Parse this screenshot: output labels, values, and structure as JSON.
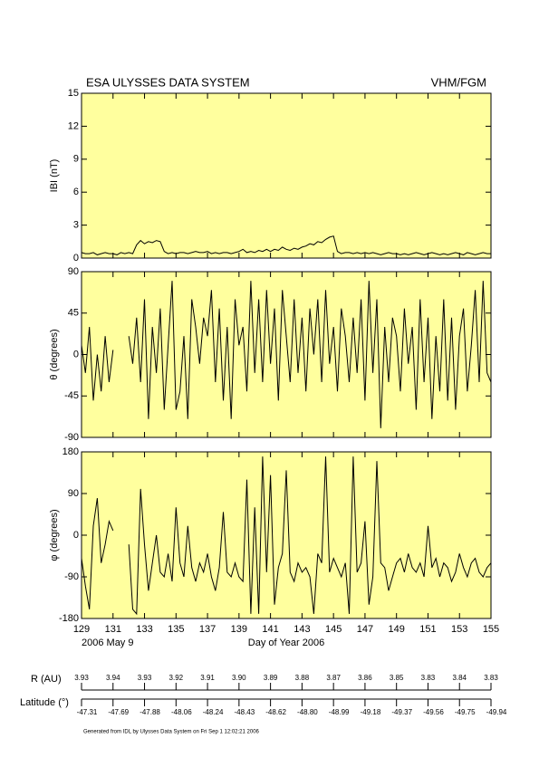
{
  "header": {
    "title": "ESA ULYSSES DATA SYSTEM",
    "instrument": "VHM/FGM"
  },
  "chart_data": [
    {
      "type": "line",
      "ylabel": "IBI (nT)",
      "color": "#000000",
      "x": [
        129,
        129.25,
        129.5,
        129.75,
        130,
        130.25,
        130.5,
        130.75,
        131,
        131.25,
        131.5,
        131.75,
        132,
        132.25,
        132.5,
        132.75,
        133,
        133.25,
        133.5,
        133.75,
        134,
        134.25,
        134.5,
        134.75,
        135,
        135.25,
        135.5,
        135.75,
        136,
        136.25,
        136.5,
        136.75,
        137,
        137.25,
        137.5,
        137.75,
        138,
        138.25,
        138.5,
        138.75,
        139,
        139.25,
        139.5,
        139.75,
        140,
        140.25,
        140.5,
        140.75,
        141,
        141.25,
        141.5,
        141.75,
        142,
        142.25,
        142.5,
        142.75,
        143,
        143.25,
        143.5,
        143.75,
        144,
        144.25,
        144.5,
        144.75,
        145,
        145.25,
        145.5,
        145.75,
        146,
        146.25,
        146.5,
        146.75,
        147,
        147.25,
        147.5,
        147.75,
        148,
        148.25,
        148.5,
        148.75,
        149,
        149.25,
        149.5,
        149.75,
        150,
        150.25,
        150.5,
        150.75,
        151,
        151.25,
        151.5,
        151.75,
        152,
        152.25,
        152.5,
        152.75,
        153,
        153.25,
        153.5,
        153.75,
        154,
        154.25,
        154.5,
        154.75,
        155
      ],
      "values": [
        0.5,
        0.4,
        0.4,
        0.5,
        0.3,
        0.4,
        0.5,
        0.4,
        0.4,
        0.3,
        0.5,
        0.4,
        0.5,
        0.4,
        1.2,
        1.6,
        1.3,
        1.5,
        1.4,
        1.6,
        1.5,
        0.6,
        0.4,
        0.5,
        0.4,
        0.5,
        0.5,
        0.4,
        0.5,
        0.6,
        0.5,
        0.5,
        0.6,
        0.4,
        0.5,
        0.4,
        0.5,
        0.5,
        0.4,
        0.5,
        0.6,
        0.8,
        0.5,
        0.6,
        0.5,
        0.7,
        0.6,
        0.8,
        0.6,
        0.8,
        0.7,
        1.0,
        0.8,
        0.7,
        0.9,
        0.8,
        1.0,
        1.1,
        1.3,
        1.2,
        1.5,
        1.4,
        1.7,
        1.9,
        2.0,
        0.6,
        0.4,
        0.5,
        0.5,
        0.4,
        0.5,
        0.4,
        0.5,
        0.4,
        0.5,
        0.4,
        0.3,
        0.4,
        0.5,
        0.4,
        0.4,
        0.3,
        0.4,
        0.3,
        0.4,
        0.5,
        0.4,
        0.3,
        0.4,
        0.5,
        0.4,
        0.3,
        0.4,
        0.3,
        0.4,
        0.5,
        0.4,
        0.3,
        0.5,
        0.4,
        0.3,
        0.4,
        0.5,
        0.4,
        0.4
      ],
      "xlim": [
        129,
        155
      ],
      "xticks": [
        129,
        131,
        133,
        135,
        137,
        139,
        141,
        143,
        145,
        147,
        149,
        151,
        153,
        155
      ],
      "ylim": [
        0,
        15
      ],
      "yticks": [
        0,
        3,
        6,
        9,
        12,
        15
      ]
    },
    {
      "type": "line",
      "ylabel": "θ (degrees)",
      "color": "#000000",
      "x": [
        129,
        129.25,
        129.5,
        129.75,
        130,
        130.25,
        130.5,
        130.75,
        131,
        131.25,
        131.5,
        131.75,
        132,
        132.25,
        132.5,
        132.75,
        133,
        133.25,
        133.5,
        133.75,
        134,
        134.25,
        134.5,
        134.75,
        135,
        135.25,
        135.5,
        135.75,
        136,
        136.25,
        136.5,
        136.75,
        137,
        137.25,
        137.5,
        137.75,
        138,
        138.25,
        138.5,
        138.75,
        139,
        139.25,
        139.5,
        139.75,
        140,
        140.25,
        140.5,
        140.75,
        141,
        141.25,
        141.5,
        141.75,
        142,
        142.25,
        142.5,
        142.75,
        143,
        143.25,
        143.5,
        143.75,
        144,
        144.25,
        144.5,
        144.75,
        145,
        145.25,
        145.5,
        145.75,
        146,
        146.25,
        146.5,
        146.75,
        147,
        147.25,
        147.5,
        147.75,
        148,
        148.25,
        148.5,
        148.75,
        149,
        149.25,
        149.5,
        149.75,
        150,
        150.25,
        150.5,
        150.75,
        151,
        151.25,
        151.5,
        151.75,
        152,
        152.25,
        152.5,
        152.75,
        153,
        153.25,
        153.5,
        153.75,
        154,
        154.25,
        154.5,
        154.75,
        155
      ],
      "values": [
        10,
        -20,
        30,
        -50,
        0,
        -40,
        20,
        -30,
        5,
        null,
        null,
        null,
        20,
        -10,
        40,
        -30,
        60,
        -70,
        30,
        -20,
        50,
        -60,
        10,
        80,
        -60,
        -40,
        20,
        -70,
        60,
        30,
        -10,
        40,
        20,
        70,
        -30,
        50,
        -50,
        30,
        -70,
        60,
        10,
        30,
        -40,
        80,
        -20,
        60,
        -30,
        70,
        -10,
        50,
        -50,
        70,
        20,
        -30,
        60,
        -20,
        40,
        -40,
        50,
        0,
        60,
        -30,
        70,
        -10,
        30,
        -40,
        50,
        20,
        -30,
        40,
        -20,
        60,
        -50,
        80,
        -20,
        60,
        -80,
        30,
        -30,
        40,
        20,
        -40,
        50,
        -10,
        30,
        -60,
        60,
        -30,
        40,
        -70,
        20,
        -40,
        60,
        -50,
        40,
        -60,
        20,
        50,
        -40,
        10,
        70,
        -30,
        80,
        -20,
        -30
      ],
      "xlim": [
        129,
        155
      ],
      "xticks": [
        129,
        131,
        133,
        135,
        137,
        139,
        141,
        143,
        145,
        147,
        149,
        151,
        153,
        155
      ],
      "ylim": [
        -90,
        90
      ],
      "yticks": [
        -90,
        -45,
        0,
        45,
        90
      ]
    },
    {
      "type": "line",
      "ylabel": "φ (degrees)",
      "xlabel": "Day of Year 2006",
      "date_label": "2006 May  9",
      "color": "#000000",
      "x": [
        129,
        129.25,
        129.5,
        129.75,
        130,
        130.25,
        130.5,
        130.75,
        131,
        131.25,
        131.5,
        131.75,
        132,
        132.25,
        132.5,
        132.75,
        133,
        133.25,
        133.5,
        133.75,
        134,
        134.25,
        134.5,
        134.75,
        135,
        135.25,
        135.5,
        135.75,
        136,
        136.25,
        136.5,
        136.75,
        137,
        137.25,
        137.5,
        137.75,
        138,
        138.25,
        138.5,
        138.75,
        139,
        139.25,
        139.5,
        139.75,
        140,
        140.25,
        140.5,
        140.75,
        141,
        141.25,
        141.5,
        141.75,
        142,
        142.25,
        142.5,
        142.75,
        143,
        143.25,
        143.5,
        143.75,
        144,
        144.25,
        144.5,
        144.75,
        145,
        145.25,
        145.5,
        145.75,
        146,
        146.25,
        146.5,
        146.75,
        147,
        147.25,
        147.5,
        147.75,
        148,
        148.25,
        148.5,
        148.75,
        149,
        149.25,
        149.5,
        149.75,
        150,
        150.25,
        150.5,
        150.75,
        151,
        151.25,
        151.5,
        151.75,
        152,
        152.25,
        152.5,
        152.75,
        153,
        153.25,
        153.5,
        153.75,
        154,
        154.25,
        154.5,
        154.75,
        155
      ],
      "values": [
        -50,
        -110,
        -160,
        20,
        80,
        -60,
        -20,
        30,
        10,
        null,
        null,
        null,
        -20,
        -160,
        -170,
        100,
        -20,
        -120,
        -60,
        0,
        -80,
        -90,
        -40,
        -100,
        60,
        -60,
        -90,
        20,
        -70,
        -100,
        -60,
        -80,
        -40,
        -90,
        -120,
        -70,
        50,
        -80,
        -90,
        -60,
        -90,
        -100,
        120,
        -170,
        60,
        -170,
        170,
        -80,
        130,
        -150,
        -70,
        -40,
        140,
        -80,
        -100,
        -60,
        -80,
        -70,
        -90,
        -170,
        -40,
        -60,
        170,
        -80,
        -50,
        -70,
        -90,
        -60,
        -170,
        170,
        -80,
        -60,
        30,
        -150,
        -90,
        160,
        -60,
        -70,
        -120,
        -90,
        -60,
        -50,
        -80,
        -40,
        -70,
        -80,
        -60,
        -90,
        20,
        -70,
        -50,
        -90,
        -60,
        -70,
        -100,
        -80,
        -40,
        -70,
        -90,
        -60,
        -50,
        -80,
        -90,
        -70,
        -60
      ],
      "xlim": [
        129,
        155
      ],
      "xticks": [
        129,
        131,
        133,
        135,
        137,
        139,
        141,
        143,
        145,
        147,
        149,
        151,
        153,
        155
      ],
      "ylim": [
        -180,
        180
      ],
      "yticks": [
        -180,
        -90,
        0,
        90,
        180
      ]
    }
  ],
  "ephemeris": {
    "r_label": "R (AU)",
    "r_values": [
      "3.93",
      "3.94",
      "3.93",
      "3.92",
      "3.91",
      "3.90",
      "3.89",
      "3.88",
      "3.87",
      "3.86",
      "3.85",
      "3.83",
      "3.84",
      "3.83"
    ],
    "lat_label": "Latitude (°)",
    "lat_values": [
      "-47.31",
      "-47.69",
      "-47.88",
      "-48.06",
      "-48.24",
      "-48.43",
      "-48.62",
      "-48.80",
      "-48.99",
      "-49.18",
      "-49.37",
      "-49.56",
      "-49.75",
      "-49.94"
    ]
  },
  "footer": "Generated from IDL by Ulysses Data System on Fri Sep  1 12:02:21 2006"
}
